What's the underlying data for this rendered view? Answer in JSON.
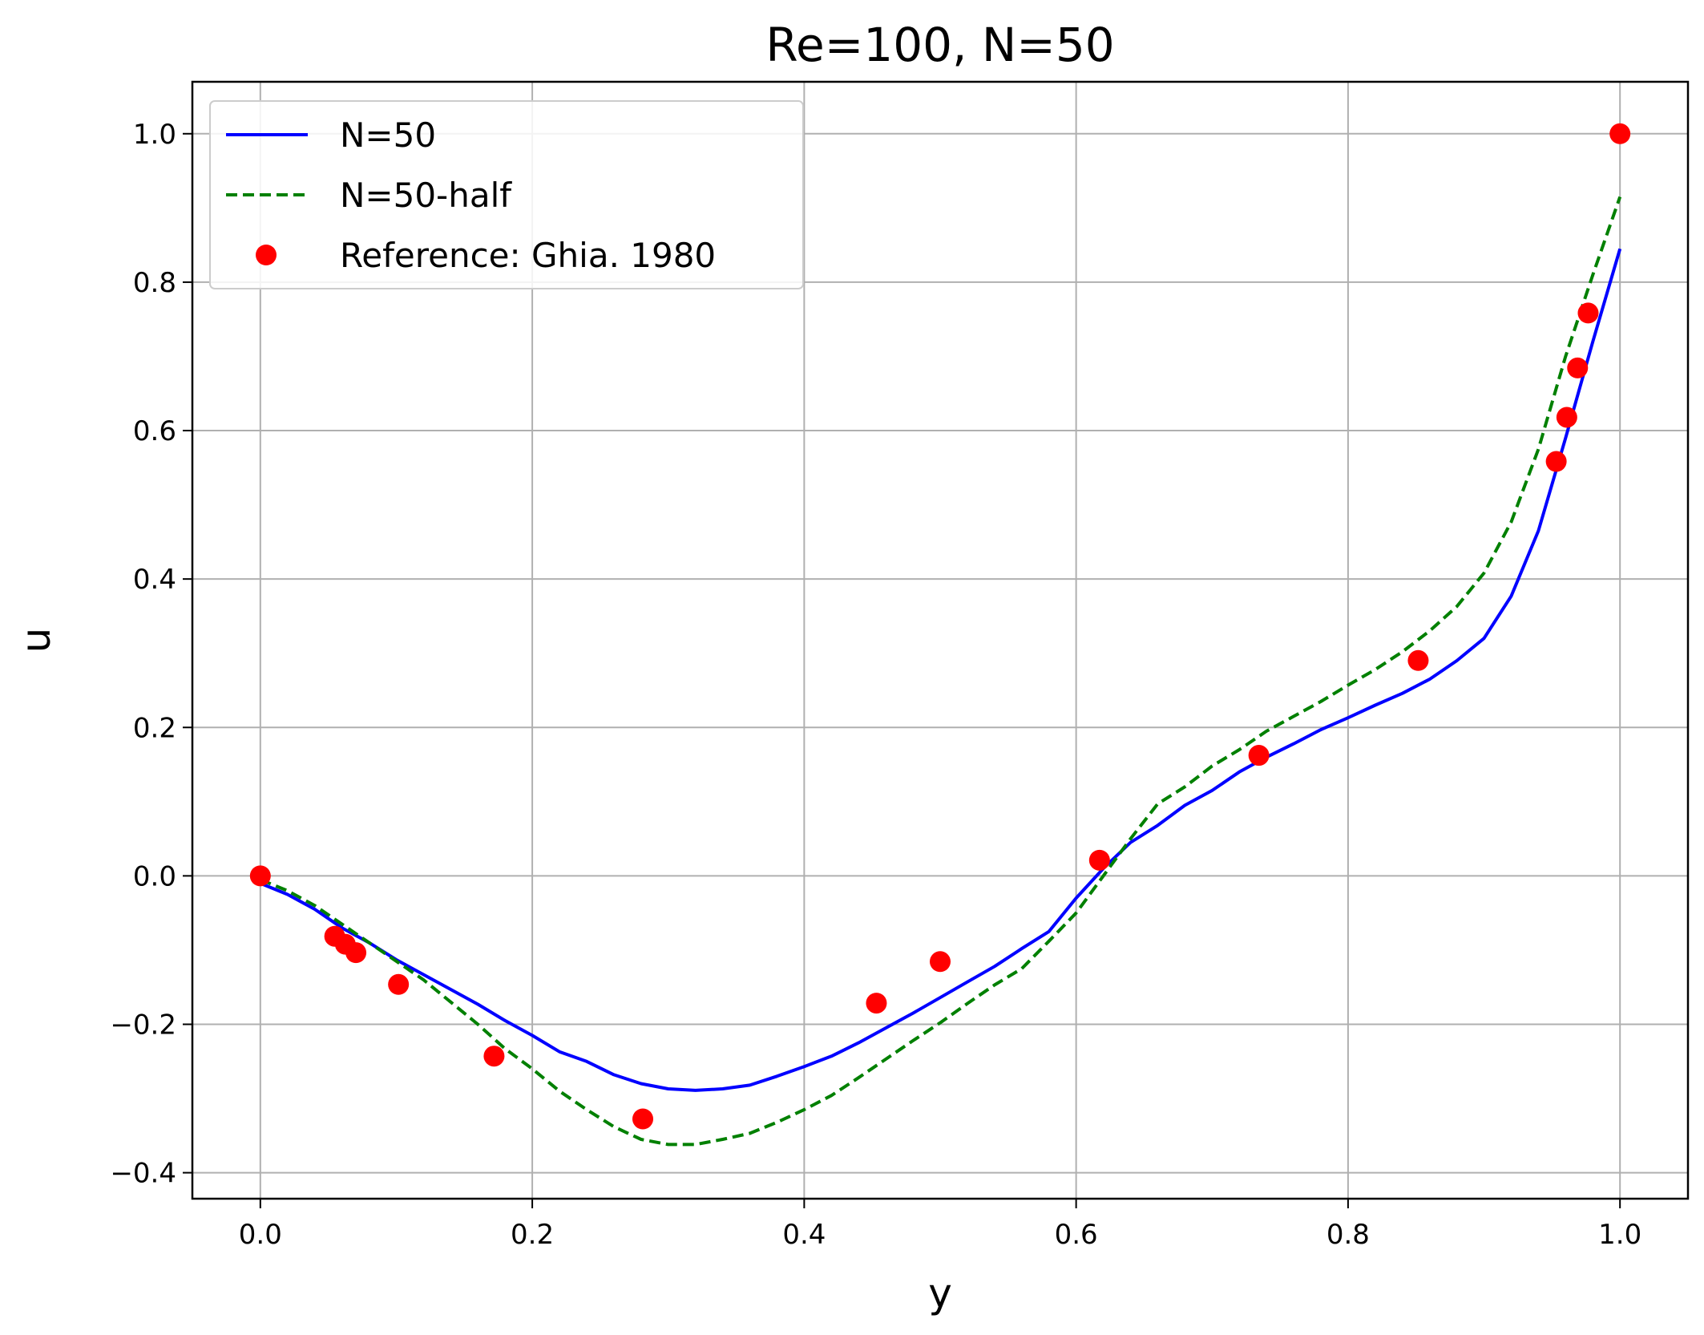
{
  "chart_data": {
    "type": "line",
    "title": "Re=100, N=50",
    "xlabel": "y",
    "ylabel": "u",
    "xlim": [
      -0.05,
      1.05
    ],
    "ylim": [
      -0.435,
      1.07
    ],
    "xticks": [
      0.0,
      0.2,
      0.4,
      0.6,
      0.8,
      1.0
    ],
    "xtick_labels": [
      "0.0",
      "0.2",
      "0.4",
      "0.6",
      "0.8",
      "1.0"
    ],
    "yticks": [
      -0.4,
      -0.2,
      0.0,
      0.2,
      0.4,
      0.6,
      0.8,
      1.0
    ],
    "ytick_labels": [
      "−0.4",
      "−0.2",
      "0.0",
      "0.2",
      "0.4",
      "0.6",
      "0.8",
      "1.0"
    ],
    "grid": true,
    "legend_position": "top-left",
    "series": [
      {
        "name": "N=50",
        "style": "solid",
        "color": "#0000ff",
        "x": [
          0.0,
          0.02,
          0.04,
          0.06,
          0.08,
          0.1,
          0.12,
          0.14,
          0.16,
          0.18,
          0.2,
          0.22,
          0.24,
          0.26,
          0.28,
          0.3,
          0.32,
          0.34,
          0.36,
          0.38,
          0.4,
          0.42,
          0.44,
          0.46,
          0.48,
          0.5,
          0.52,
          0.54,
          0.56,
          0.58,
          0.6,
          0.62,
          0.64,
          0.66,
          0.68,
          0.7,
          0.72,
          0.74,
          0.76,
          0.78,
          0.8,
          0.82,
          0.84,
          0.86,
          0.88,
          0.9,
          0.92,
          0.94,
          0.96,
          0.98,
          1.0
        ],
        "y": [
          -0.01,
          -0.025,
          -0.045,
          -0.07,
          -0.09,
          -0.113,
          -0.133,
          -0.153,
          -0.173,
          -0.195,
          -0.215,
          -0.237,
          -0.25,
          -0.268,
          -0.28,
          -0.287,
          -0.289,
          -0.287,
          -0.282,
          -0.27,
          -0.257,
          -0.243,
          -0.225,
          -0.205,
          -0.185,
          -0.164,
          -0.143,
          -0.122,
          -0.098,
          -0.075,
          -0.03,
          0.01,
          0.045,
          0.068,
          0.095,
          0.115,
          0.14,
          0.16,
          0.178,
          0.197,
          0.213,
          0.23,
          0.246,
          0.265,
          0.29,
          0.32,
          0.377,
          0.465,
          0.59,
          0.72,
          0.845
        ]
      },
      {
        "name": "N=50-half",
        "style": "dashed",
        "color": "#008000",
        "x": [
          0.0,
          0.02,
          0.04,
          0.06,
          0.08,
          0.1,
          0.12,
          0.14,
          0.16,
          0.18,
          0.2,
          0.22,
          0.24,
          0.26,
          0.28,
          0.3,
          0.32,
          0.34,
          0.36,
          0.38,
          0.4,
          0.42,
          0.44,
          0.46,
          0.48,
          0.5,
          0.52,
          0.54,
          0.56,
          0.58,
          0.6,
          0.62,
          0.64,
          0.66,
          0.68,
          0.7,
          0.72,
          0.74,
          0.76,
          0.78,
          0.8,
          0.82,
          0.84,
          0.86,
          0.88,
          0.9,
          0.92,
          0.94,
          0.96,
          0.98,
          1.0
        ],
        "y": [
          -0.005,
          -0.02,
          -0.04,
          -0.065,
          -0.09,
          -0.115,
          -0.14,
          -0.17,
          -0.2,
          -0.233,
          -0.26,
          -0.29,
          -0.315,
          -0.338,
          -0.355,
          -0.362,
          -0.362,
          -0.355,
          -0.347,
          -0.332,
          -0.315,
          -0.296,
          -0.272,
          -0.247,
          -0.222,
          -0.198,
          -0.172,
          -0.147,
          -0.125,
          -0.088,
          -0.05,
          0.0,
          0.05,
          0.097,
          0.12,
          0.148,
          0.17,
          0.195,
          0.215,
          0.235,
          0.257,
          0.278,
          0.302,
          0.33,
          0.363,
          0.408,
          0.477,
          0.575,
          0.7,
          0.81,
          0.915
        ]
      },
      {
        "name": "Reference: Ghia. 1980",
        "style": "markers",
        "color": "#ff0000",
        "x": [
          0.0,
          0.0547,
          0.0625,
          0.0703,
          0.1016,
          0.1719,
          0.2813,
          0.4531,
          0.5,
          0.6172,
          0.7344,
          0.8516,
          0.9531,
          0.9609,
          0.9688,
          0.9766,
          1.0
        ],
        "y": [
          0.0,
          -0.0814,
          -0.0921,
          -0.1035,
          -0.1463,
          -0.2429,
          -0.3275,
          -0.1715,
          -0.1155,
          0.0211,
          0.1624,
          0.2902,
          0.5584,
          0.6179,
          0.6844,
          0.7584,
          1.0
        ]
      }
    ]
  }
}
